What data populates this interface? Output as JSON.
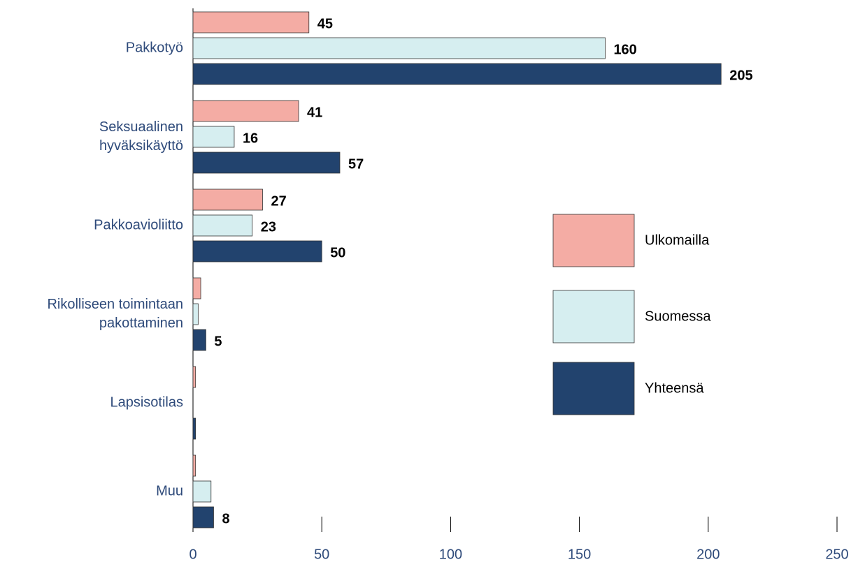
{
  "chart_data": {
    "type": "hbar",
    "categories": [
      [
        "Pakkotyö"
      ],
      [
        "Seksuaalinen",
        "hyväksikäyttö"
      ],
      [
        "Pakkoavioliitto"
      ],
      [
        "Rikolliseen toimintaan",
        "pakottaminen"
      ],
      [
        "Lapsisotilas"
      ],
      [
        "Muu"
      ]
    ],
    "series": [
      {
        "name": "Ulkomailla",
        "color": "#f4aca4",
        "values": [
          45,
          41,
          27,
          3,
          1,
          1
        ],
        "value_labels": [
          "45",
          "41",
          "27",
          null,
          null,
          null
        ]
      },
      {
        "name": "Suomessa",
        "color": "#d6eef0",
        "values": [
          160,
          16,
          23,
          2,
          0,
          7
        ],
        "value_labels": [
          "160",
          "16",
          "23",
          null,
          null,
          null
        ]
      },
      {
        "name": "Yhteensä",
        "color": "#22436e",
        "values": [
          205,
          57,
          50,
          5,
          1,
          8
        ],
        "value_labels": [
          "205",
          "57",
          "50",
          "5",
          null,
          "8"
        ]
      }
    ],
    "xlim": [
      0,
      250
    ],
    "xticks": [
      0,
      50,
      100,
      150,
      200,
      250
    ],
    "legend": "right"
  }
}
